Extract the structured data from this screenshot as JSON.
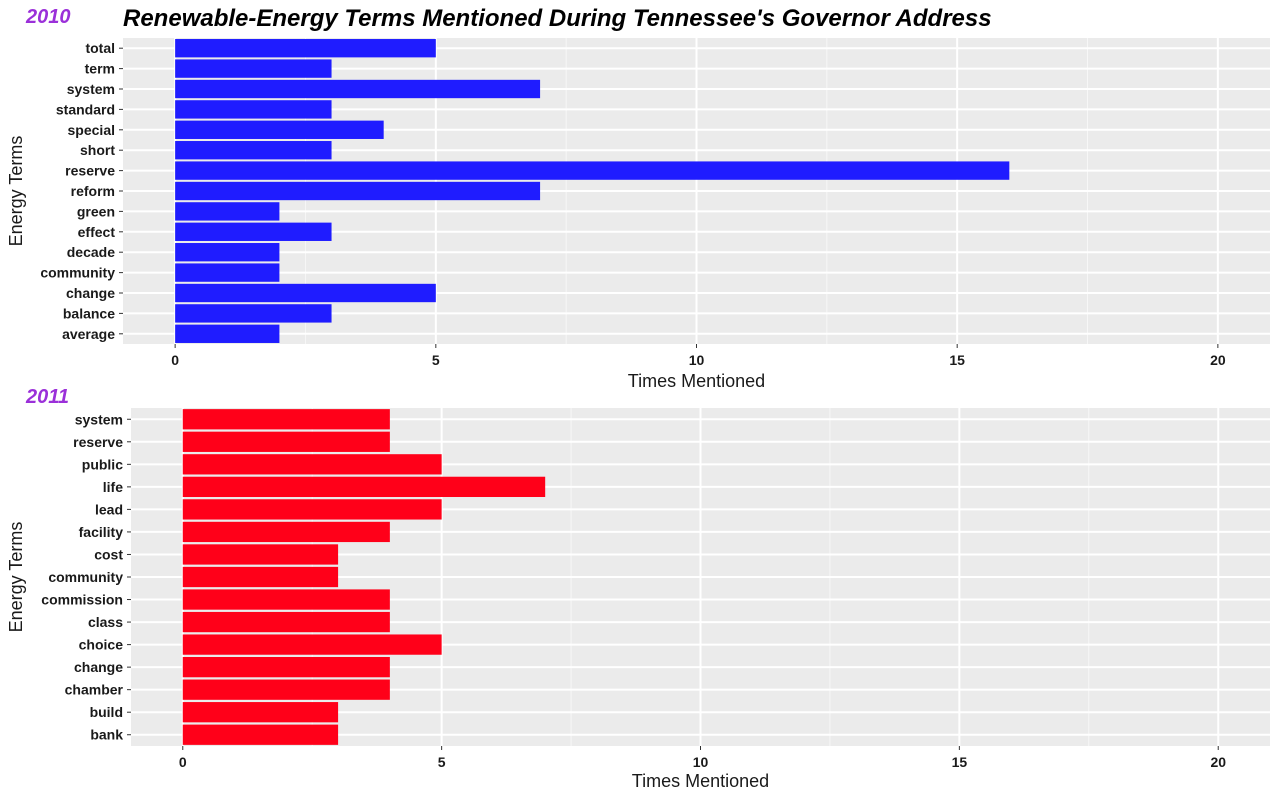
{
  "title": "Renewable-Energy Terms Mentioned During Tennessee's Governor Address",
  "chart_data": [
    {
      "type": "bar",
      "orientation": "horizontal",
      "panel_label": "2010",
      "xlabel": "Times Mentioned",
      "ylabel": "Energy Terms",
      "xlim": [
        -1,
        21
      ],
      "xticks": [
        0,
        5,
        10,
        15,
        20
      ],
      "grid": true,
      "bar_color": "#1f1cff",
      "label_color": "#9b30d9",
      "categories": [
        "total",
        "term",
        "system",
        "standard",
        "special",
        "short",
        "reserve",
        "reform",
        "green",
        "effect",
        "decade",
        "community",
        "change",
        "balance",
        "average"
      ],
      "values": [
        5,
        3,
        7,
        3,
        4,
        3,
        16,
        7,
        2,
        3,
        2,
        2,
        5,
        3,
        2
      ]
    },
    {
      "type": "bar",
      "orientation": "horizontal",
      "panel_label": "2011",
      "xlabel": "Times Mentioned",
      "ylabel": "Energy Terms",
      "xlim": [
        -1,
        21
      ],
      "xticks": [
        0,
        5,
        10,
        15,
        20
      ],
      "grid": true,
      "bar_color": "#ff0019",
      "label_color": "#9b30d9",
      "categories": [
        "system",
        "reserve",
        "public",
        "life",
        "lead",
        "facility",
        "cost",
        "community",
        "commission",
        "class",
        "choice",
        "change",
        "chamber",
        "build",
        "bank"
      ],
      "values": [
        4,
        4,
        5,
        7,
        5,
        4,
        3,
        3,
        4,
        4,
        5,
        4,
        4,
        3,
        3
      ]
    }
  ]
}
